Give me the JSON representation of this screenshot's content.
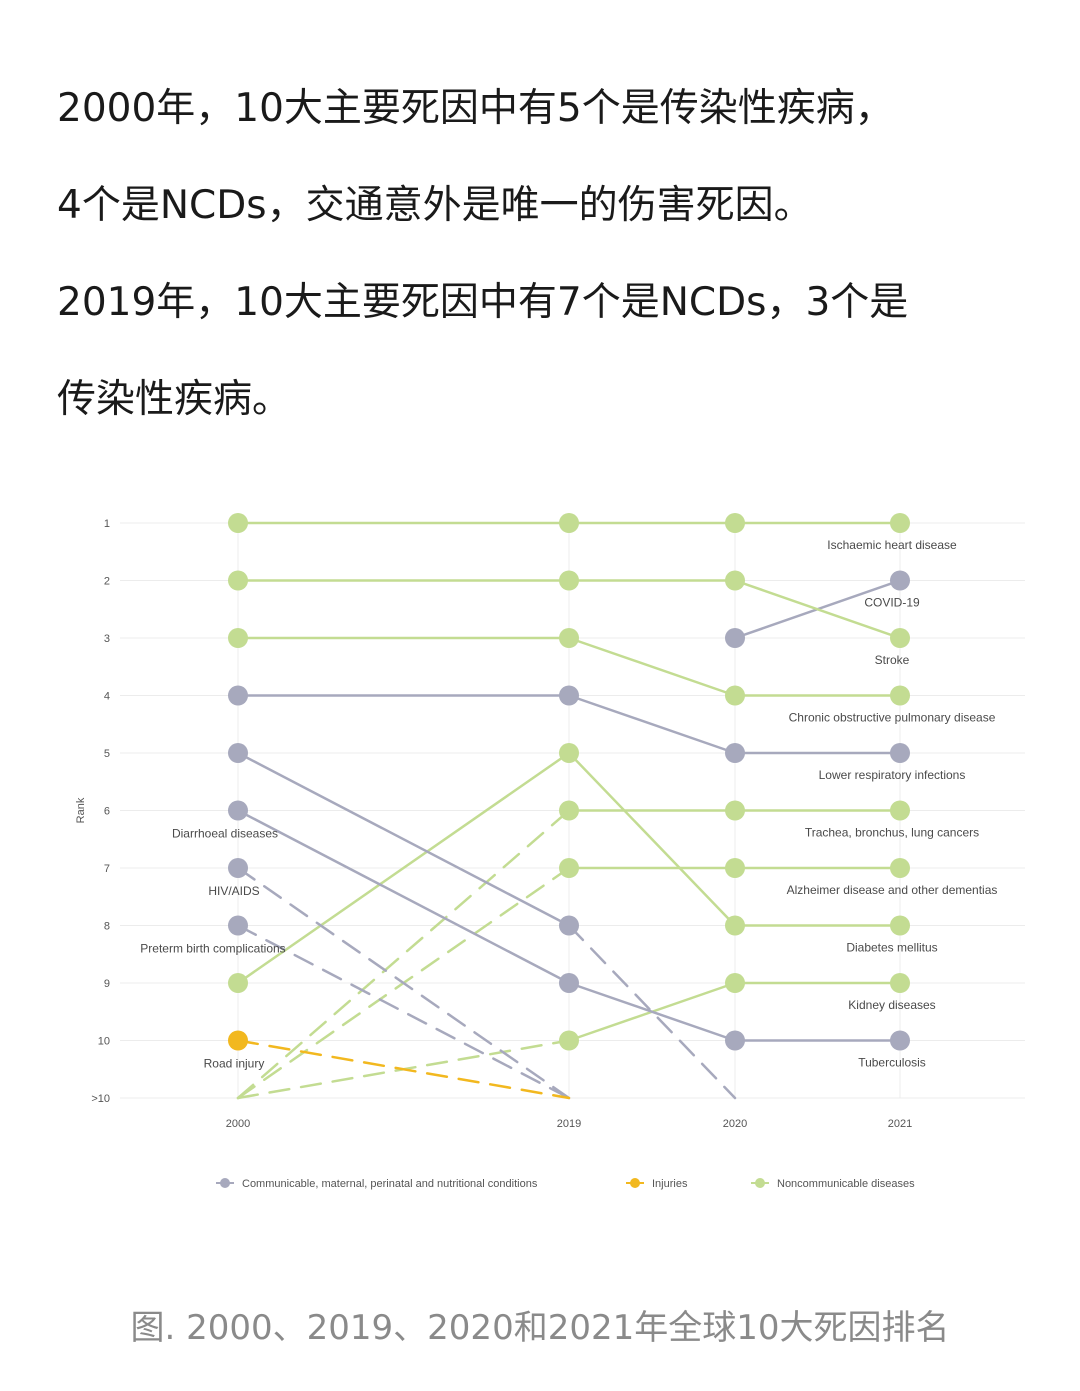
{
  "article": {
    "paragraphs": [
      "2000年，10大主要死因中有5个是传染性疾病，",
      "4个是NCDs，交通意外是唯一的伤害死因。",
      "2019年，10大主要死因中有7个是NCDs，3个是",
      "传染性疾病。"
    ]
  },
  "caption": "图. 2000、2019、2020和2021年全球10大死因排名",
  "colors": {
    "communicable": "#a7a9bd",
    "injuries": "#f2b81f",
    "noncommunicable": "#c3dc92",
    "grid": "#ececec"
  },
  "chart_data": {
    "type": "line",
    "ylabel": "Rank",
    "xlabel": "",
    "x": [
      "2000",
      "2019",
      "2020",
      "2021"
    ],
    "ytick_labels": [
      "1",
      "2",
      "3",
      "4",
      "5",
      "6",
      "7",
      "8",
      "9",
      "10",
      ">10"
    ],
    "ylim": [
      1,
      11
    ],
    "grid": true,
    "legend_position": "bottom",
    "legend": [
      {
        "key": "communicable",
        "label": "Communicable, maternal, perinatal and nutritional conditions"
      },
      {
        "key": "injuries",
        "label": "Injuries"
      },
      {
        "key": "noncommunicable",
        "label": "Noncommunicable diseases"
      }
    ],
    "series": [
      {
        "category": "noncommunicable",
        "ranks": [
          1,
          1,
          1,
          1
        ],
        "label_2021": "Ischaemic heart disease"
      },
      {
        "category": "communicable",
        "ranks": [
          null,
          null,
          3,
          2
        ],
        "label_2021": "COVID-19"
      },
      {
        "category": "noncommunicable",
        "ranks": [
          2,
          2,
          2,
          3
        ],
        "label_2021": "Stroke"
      },
      {
        "category": "noncommunicable",
        "ranks": [
          3,
          3,
          4,
          4
        ],
        "label_2021": "Chronic obstructive pulmonary disease"
      },
      {
        "category": "communicable",
        "ranks": [
          4,
          4,
          5,
          5
        ],
        "label_2021": "Lower respiratory infections"
      },
      {
        "category": "noncommunicable",
        "ranks": [
          11,
          6,
          6,
          6
        ],
        "label_2021": "Trachea, bronchus, lung cancers"
      },
      {
        "category": "noncommunicable",
        "ranks": [
          11,
          7,
          7,
          7
        ],
        "label_2021": "Alzheimer disease and other dementias"
      },
      {
        "category": "noncommunicable",
        "ranks": [
          9,
          5,
          8,
          8
        ],
        "label_2021": "Diabetes mellitus"
      },
      {
        "category": "noncommunicable",
        "ranks": [
          11,
          10,
          9,
          9
        ],
        "label_2021": "Kidney diseases"
      },
      {
        "category": "communicable",
        "ranks": [
          6,
          9,
          10,
          10
        ],
        "label_2021": "Tuberculosis"
      },
      {
        "category": "communicable",
        "ranks": [
          5,
          8,
          11,
          null
        ],
        "label_2000": "Diarrhoeal diseases"
      },
      {
        "category": "communicable",
        "ranks": [
          7,
          11,
          null,
          null
        ],
        "label_2000": "HIV/AIDS"
      },
      {
        "category": "communicable",
        "ranks": [
          8,
          11,
          null,
          null
        ],
        "label_2000": "Preterm birth complications"
      },
      {
        "category": "injuries",
        "ranks": [
          10,
          11,
          null,
          null
        ],
        "label_2000": "Road injury"
      }
    ]
  }
}
